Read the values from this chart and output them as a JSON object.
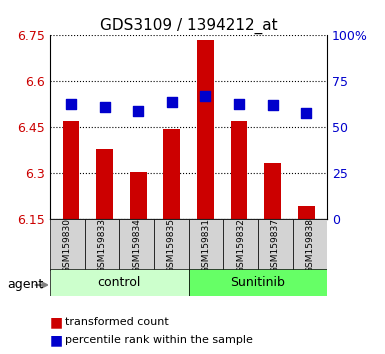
{
  "title": "GDS3109 / 1394212_at",
  "samples": [
    "GSM159830",
    "GSM159833",
    "GSM159834",
    "GSM159835",
    "GSM159831",
    "GSM159832",
    "GSM159837",
    "GSM159838"
  ],
  "groups": [
    "control",
    "control",
    "control",
    "control",
    "Sunitinib",
    "Sunitinib",
    "Sunitinib",
    "Sunitinib"
  ],
  "bar_values": [
    6.47,
    6.38,
    6.305,
    6.445,
    6.735,
    6.47,
    6.335,
    6.195
  ],
  "dot_values": [
    63,
    61,
    59,
    64,
    67,
    63,
    62,
    58
  ],
  "bar_bottom": 6.15,
  "ylim": [
    6.15,
    6.75
  ],
  "y2lim": [
    0,
    100
  ],
  "yticks": [
    6.15,
    6.3,
    6.45,
    6.6,
    6.75
  ],
  "y2ticks": [
    0,
    25,
    50,
    75,
    100
  ],
  "ytick_labels": [
    "6.15",
    "6.3",
    "6.45",
    "6.6",
    "6.75"
  ],
  "y2tick_labels": [
    "0",
    "25",
    "50",
    "75",
    "100%"
  ],
  "bar_color": "#cc0000",
  "dot_color": "#0000cc",
  "control_color": "#ccffcc",
  "sunitinib_color": "#66ff66",
  "group_label_color": "black",
  "title_color": "black",
  "agent_label": "agent",
  "grid_color": "black",
  "xlabel_color": "black",
  "ylabel_color": "#cc0000",
  "y2label_color": "#0000cc",
  "bar_width": 0.5,
  "dot_size": 60,
  "legend_items": [
    "transformed count",
    "percentile rank within the sample"
  ]
}
